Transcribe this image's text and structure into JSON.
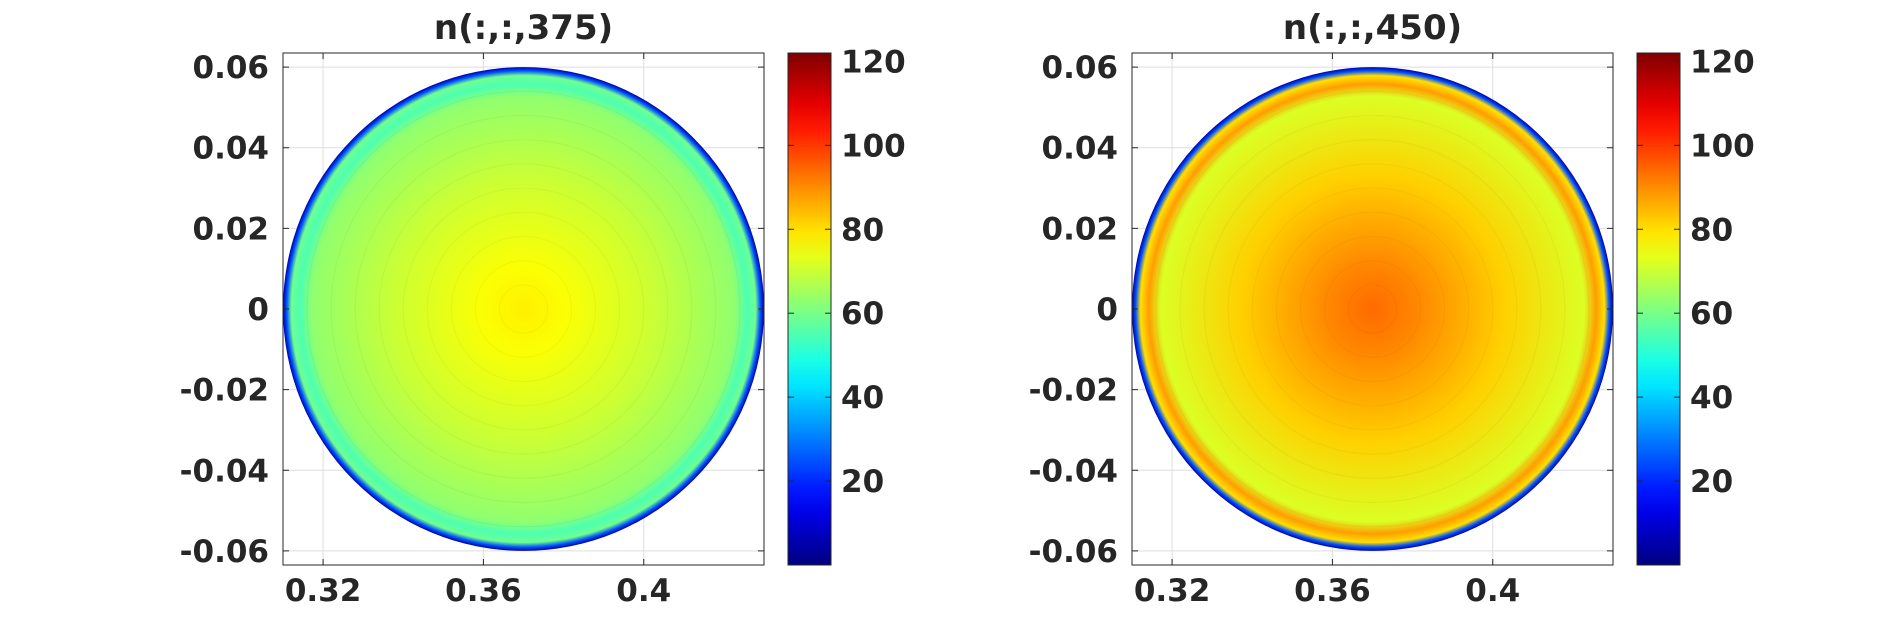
{
  "chart_data": [
    {
      "type": "heatmap",
      "title": "n(:,:,375)",
      "xlabel": "",
      "ylabel": "",
      "xlim": [
        0.31,
        0.43
      ],
      "ylim": [
        -0.0635,
        0.0635
      ],
      "xticks": [
        0.32,
        0.36,
        0.4
      ],
      "xtick_labels": [
        "0.32",
        "0.36",
        "0.4"
      ],
      "yticks": [
        0.06,
        0.04,
        0.02,
        0,
        -0.02,
        -0.04,
        -0.06
      ],
      "ytick_labels": [
        "0.06",
        "0.04",
        "0.02",
        "0",
        "-0.02",
        "-0.04",
        "-0.06"
      ],
      "grid": true,
      "colormap": "jet",
      "clim": [
        0,
        122
      ],
      "colorbar_ticks": [
        20,
        40,
        60,
        80,
        100,
        120
      ],
      "colorbar_tick_labels": [
        "20",
        "40",
        "60",
        "80",
        "100",
        "120"
      ],
      "disk": {
        "center": [
          0.37,
          0
        ],
        "radius": 0.06
      },
      "field": {
        "center_value": 78,
        "inner_rim_value": 63,
        "rim_peak_value": 55,
        "edge_value": 5
      }
    },
    {
      "type": "heatmap",
      "title": "n(:,:,450)",
      "xlabel": "",
      "ylabel": "",
      "xlim": [
        0.31,
        0.43
      ],
      "ylim": [
        -0.0635,
        0.0635
      ],
      "xticks": [
        0.32,
        0.36,
        0.4
      ],
      "xtick_labels": [
        "0.32",
        "0.36",
        "0.4"
      ],
      "yticks": [
        0.06,
        0.04,
        0.02,
        0,
        -0.02,
        -0.04,
        -0.06
      ],
      "ytick_labels": [
        "0.06",
        "0.04",
        "0.02",
        "0",
        "-0.02",
        "-0.04",
        "-0.06"
      ],
      "grid": true,
      "colormap": "jet",
      "clim": [
        0,
        122
      ],
      "colorbar_ticks": [
        20,
        40,
        60,
        80,
        100,
        120
      ],
      "colorbar_tick_labels": [
        "20",
        "40",
        "60",
        "80",
        "100",
        "120"
      ],
      "disk": {
        "center": [
          0.37,
          0
        ],
        "radius": 0.06
      },
      "field": {
        "center_value": 94,
        "inner_rim_value": 72,
        "rim_peak_value": 88,
        "edge_value": 5
      }
    }
  ]
}
